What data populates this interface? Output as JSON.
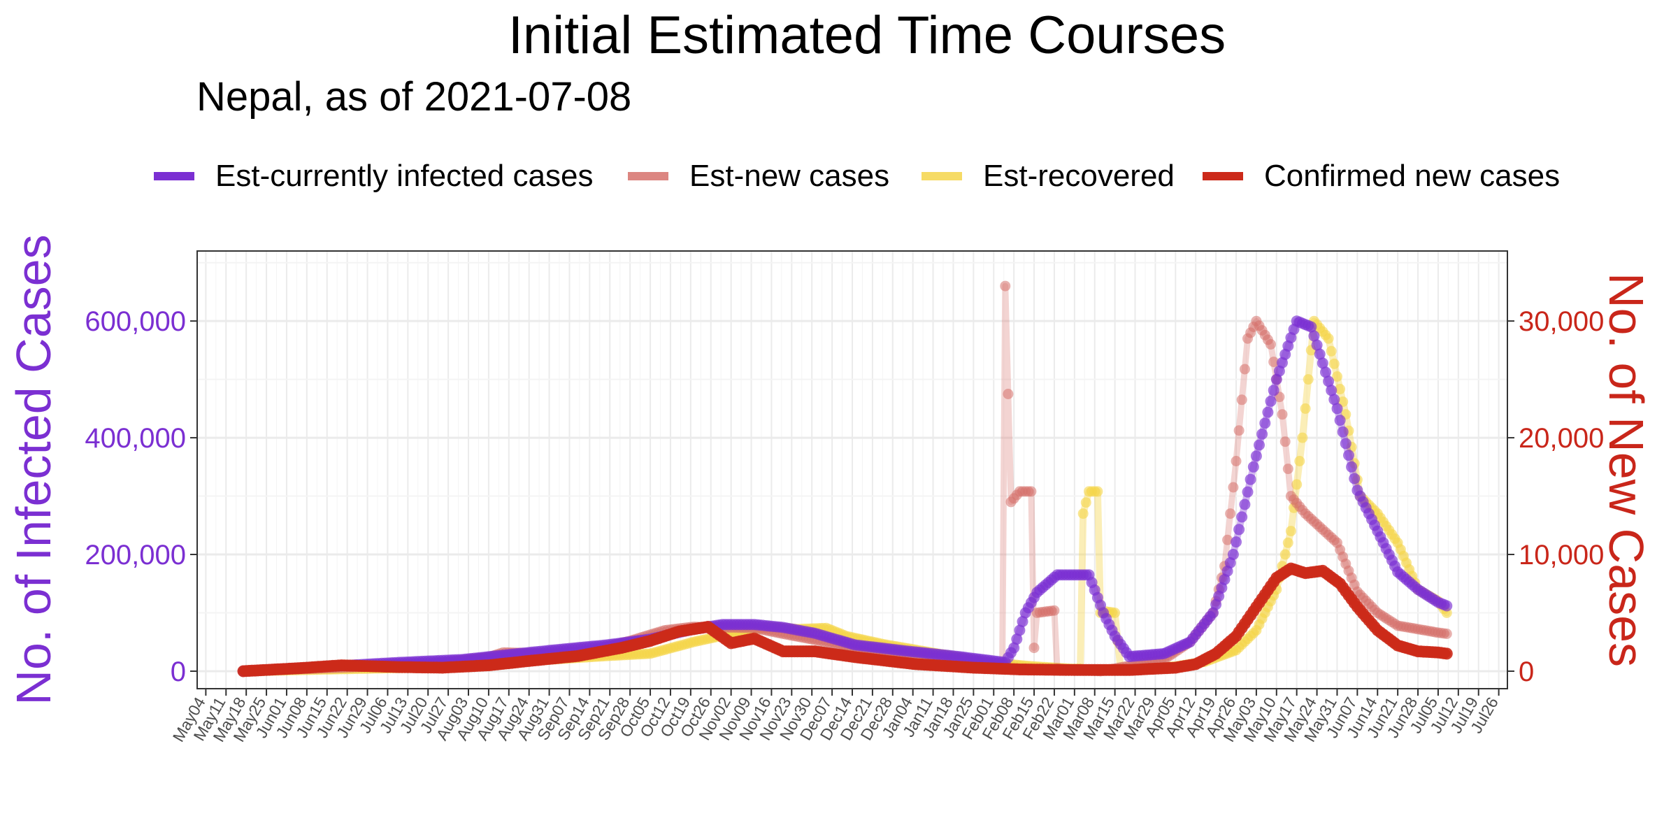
{
  "colors": {
    "infected": "#7b2fd2",
    "new_est": "#d6716b",
    "recovered": "#f5d54a",
    "confirmed": "#cc2a1a",
    "left_axis": "#7b2fd2",
    "right_axis": "#c9261a",
    "grid": "#ebebeb"
  },
  "chart_data": {
    "type": "line",
    "title": "Initial Estimated Time Courses",
    "subtitle": "Nepal, as of 2021-07-08",
    "legend_position": "top",
    "grid": true,
    "y_left": {
      "label": "No. of Infected Cases",
      "range": [
        -30000,
        720000
      ],
      "ticks": [
        0,
        200000,
        400000,
        600000
      ],
      "tick_labels": [
        "0",
        "200,000",
        "400,000",
        "600,000"
      ]
    },
    "y_right": {
      "label": "No. of New Cases",
      "range": [
        -1500,
        36000
      ],
      "ticks": [
        0,
        10000,
        20000,
        30000
      ],
      "tick_labels": [
        "0",
        "10,000",
        "20,000",
        "30,000"
      ]
    },
    "x_axis": {
      "range": [
        "2020-05-01",
        "2021-07-29"
      ],
      "tick_labels": [
        "May04",
        "May11",
        "May18",
        "May25",
        "Jun01",
        "Jun08",
        "Jun15",
        "Jun22",
        "Jun29",
        "Jul06",
        "Jul13",
        "Jul20",
        "Jul27",
        "Aug03",
        "Aug10",
        "Aug17",
        "Aug24",
        "Aug31",
        "Sep07",
        "Sep14",
        "Sep21",
        "Sep28",
        "Oct05",
        "Oct12",
        "Oct19",
        "Oct26",
        "Nov02",
        "Nov09",
        "Nov16",
        "Nov23",
        "Nov30",
        "Dec07",
        "Dec14",
        "Dec21",
        "Dec28",
        "Jan04",
        "Jan11",
        "Jan18",
        "Jan25",
        "Feb01",
        "Feb08",
        "Feb15",
        "Feb22",
        "Mar01",
        "Mar08",
        "Mar15",
        "Mar22",
        "Mar29",
        "Apr05",
        "Apr12",
        "Apr19",
        "Apr26",
        "May03",
        "May10",
        "May17",
        "May24",
        "May31",
        "Jun07",
        "Jun14",
        "Jun21",
        "Jun28",
        "Jul05",
        "Jul12",
        "Jul19",
        "Jul26"
      ],
      "tick_dates": [
        "2020-05-04",
        "2020-05-11",
        "2020-05-18",
        "2020-05-25",
        "2020-06-01",
        "2020-06-08",
        "2020-06-15",
        "2020-06-22",
        "2020-06-29",
        "2020-07-06",
        "2020-07-13",
        "2020-07-20",
        "2020-07-27",
        "2020-08-03",
        "2020-08-10",
        "2020-08-17",
        "2020-08-24",
        "2020-08-31",
        "2020-09-07",
        "2020-09-14",
        "2020-09-21",
        "2020-09-28",
        "2020-10-05",
        "2020-10-12",
        "2020-10-19",
        "2020-10-26",
        "2020-11-02",
        "2020-11-09",
        "2020-11-16",
        "2020-11-23",
        "2020-11-30",
        "2020-12-07",
        "2020-12-14",
        "2020-12-21",
        "2020-12-28",
        "2021-01-04",
        "2021-01-11",
        "2021-01-18",
        "2021-01-25",
        "2021-02-01",
        "2021-02-08",
        "2021-02-15",
        "2021-02-22",
        "2021-03-01",
        "2021-03-08",
        "2021-03-15",
        "2021-03-22",
        "2021-03-29",
        "2021-04-05",
        "2021-04-12",
        "2021-04-19",
        "2021-04-26",
        "2021-05-03",
        "2021-05-10",
        "2021-05-17",
        "2021-05-24",
        "2021-05-31",
        "2021-06-07",
        "2021-06-14",
        "2021-06-21",
        "2021-06-28",
        "2021-07-05",
        "2021-07-12",
        "2021-07-19",
        "2021-07-26"
      ]
    },
    "series": [
      {
        "name": "Est-currently infected cases",
        "axis": "left",
        "points": [
          [
            "2020-05-17",
            0
          ],
          [
            "2020-06-15",
            8000
          ],
          [
            "2020-07-10",
            15000
          ],
          [
            "2020-08-01",
            20000
          ],
          [
            "2020-08-20",
            30000
          ],
          [
            "2020-09-05",
            38000
          ],
          [
            "2020-09-20",
            45000
          ],
          [
            "2020-10-05",
            55000
          ],
          [
            "2020-10-20",
            72000
          ],
          [
            "2020-10-30",
            80000
          ],
          [
            "2020-11-10",
            80000
          ],
          [
            "2020-11-20",
            75000
          ],
          [
            "2020-12-01",
            65000
          ],
          [
            "2020-12-15",
            45000
          ],
          [
            "2021-01-01",
            35000
          ],
          [
            "2021-01-20",
            25000
          ],
          [
            "2021-02-05",
            15000
          ],
          [
            "2021-02-08",
            40000
          ],
          [
            "2021-02-12",
            100000
          ],
          [
            "2021-02-16",
            135000
          ],
          [
            "2021-02-23",
            165000
          ],
          [
            "2021-03-06",
            165000
          ],
          [
            "2021-03-11",
            100000
          ],
          [
            "2021-03-15",
            60000
          ],
          [
            "2021-03-20",
            25000
          ],
          [
            "2021-04-01",
            30000
          ],
          [
            "2021-04-10",
            50000
          ],
          [
            "2021-04-18",
            100000
          ],
          [
            "2021-04-25",
            200000
          ],
          [
            "2021-05-02",
            350000
          ],
          [
            "2021-05-10",
            500000
          ],
          [
            "2021-05-17",
            600000
          ],
          [
            "2021-05-22",
            590000
          ],
          [
            "2021-05-31",
            450000
          ],
          [
            "2021-06-07",
            310000
          ],
          [
            "2021-06-14",
            240000
          ],
          [
            "2021-06-21",
            170000
          ],
          [
            "2021-06-28",
            140000
          ],
          [
            "2021-07-05",
            118000
          ],
          [
            "2021-07-08",
            112000
          ]
        ]
      },
      {
        "name": "Est-new cases",
        "axis": "right",
        "points": [
          [
            "2020-05-17",
            0
          ],
          [
            "2020-06-20",
            300
          ],
          [
            "2020-07-20",
            600
          ],
          [
            "2020-08-10",
            1200
          ],
          [
            "2020-08-15",
            1600
          ],
          [
            "2020-09-01",
            1500
          ],
          [
            "2020-09-15",
            1800
          ],
          [
            "2020-09-28",
            2600
          ],
          [
            "2020-10-10",
            3500
          ],
          [
            "2020-10-20",
            3800
          ],
          [
            "2020-11-10",
            3700
          ],
          [
            "2020-11-20",
            3200
          ],
          [
            "2020-12-05",
            2500
          ],
          [
            "2020-12-20",
            1600
          ],
          [
            "2021-01-10",
            1200
          ],
          [
            "2021-01-30",
            700
          ],
          [
            "2021-02-04",
            600
          ],
          [
            "2021-02-05",
            33000
          ],
          [
            "2021-02-07",
            14500
          ],
          [
            "2021-02-10",
            15400
          ],
          [
            "2021-02-14",
            15400
          ],
          [
            "2021-02-15",
            2000
          ],
          [
            "2021-02-16",
            5000
          ],
          [
            "2021-02-22",
            5200
          ],
          [
            "2021-02-23",
            200
          ],
          [
            "2021-03-10",
            0
          ],
          [
            "2021-04-01",
            1000
          ],
          [
            "2021-04-10",
            2500
          ],
          [
            "2021-04-18",
            5000
          ],
          [
            "2021-04-22",
            9000
          ],
          [
            "2021-04-26",
            18000
          ],
          [
            "2021-04-30",
            28500
          ],
          [
            "2021-05-03",
            30000
          ],
          [
            "2021-05-08",
            28000
          ],
          [
            "2021-05-12",
            22000
          ],
          [
            "2021-05-15",
            15000
          ],
          [
            "2021-05-20",
            13500
          ],
          [
            "2021-05-31",
            11000
          ],
          [
            "2021-06-07",
            6800
          ],
          [
            "2021-06-14",
            5000
          ],
          [
            "2021-06-21",
            3900
          ],
          [
            "2021-06-28",
            3600
          ],
          [
            "2021-07-05",
            3300
          ],
          [
            "2021-07-08",
            3200
          ]
        ]
      },
      {
        "name": "Est-recovered",
        "axis": "right",
        "points": [
          [
            "2020-05-17",
            0
          ],
          [
            "2020-06-15",
            150
          ],
          [
            "2020-07-15",
            300
          ],
          [
            "2020-08-10",
            600
          ],
          [
            "2020-08-25",
            900
          ],
          [
            "2020-09-20",
            1300
          ],
          [
            "2020-10-05",
            1500
          ],
          [
            "2020-10-20",
            2500
          ],
          [
            "2020-11-02",
            3200
          ],
          [
            "2020-11-15",
            3800
          ],
          [
            "2020-11-25",
            3600
          ],
          [
            "2020-12-05",
            3700
          ],
          [
            "2020-12-12",
            3000
          ],
          [
            "2020-12-25",
            2300
          ],
          [
            "2021-01-15",
            1400
          ],
          [
            "2021-02-01",
            700
          ],
          [
            "2021-02-15",
            400
          ],
          [
            "2021-02-28",
            200
          ],
          [
            "2021-03-03",
            200
          ],
          [
            "2021-03-04",
            13500
          ],
          [
            "2021-03-06",
            15400
          ],
          [
            "2021-03-09",
            15400
          ],
          [
            "2021-03-10",
            5000
          ],
          [
            "2021-03-12",
            5100
          ],
          [
            "2021-03-15",
            5000
          ],
          [
            "2021-03-17",
            100
          ],
          [
            "2021-04-05",
            400
          ],
          [
            "2021-04-15",
            800
          ],
          [
            "2021-04-26",
            1800
          ],
          [
            "2021-05-03",
            3500
          ],
          [
            "2021-05-10",
            7000
          ],
          [
            "2021-05-15",
            12000
          ],
          [
            "2021-05-19",
            20000
          ],
          [
            "2021-05-23",
            30000
          ],
          [
            "2021-05-28",
            28500
          ],
          [
            "2021-06-03",
            22000
          ],
          [
            "2021-06-08",
            15000
          ],
          [
            "2021-06-14",
            13500
          ],
          [
            "2021-06-21",
            11000
          ],
          [
            "2021-06-28",
            7000
          ],
          [
            "2021-07-05",
            6000
          ],
          [
            "2021-07-08",
            5000
          ]
        ]
      },
      {
        "name": "Confirmed new cases",
        "axis": "right",
        "points": [
          [
            "2020-05-17",
            0
          ],
          [
            "2020-06-05",
            250
          ],
          [
            "2020-06-20",
            500
          ],
          [
            "2020-07-10",
            350
          ],
          [
            "2020-07-25",
            300
          ],
          [
            "2020-08-10",
            500
          ],
          [
            "2020-08-25",
            900
          ],
          [
            "2020-09-10",
            1300
          ],
          [
            "2020-09-25",
            2000
          ],
          [
            "2020-10-05",
            2600
          ],
          [
            "2020-10-15",
            3400
          ],
          [
            "2020-10-25",
            3800
          ],
          [
            "2020-11-02",
            2400
          ],
          [
            "2020-11-10",
            2800
          ],
          [
            "2020-11-20",
            1700
          ],
          [
            "2020-12-01",
            1700
          ],
          [
            "2020-12-15",
            1200
          ],
          [
            "2021-01-05",
            600
          ],
          [
            "2021-01-25",
            300
          ],
          [
            "2021-02-10",
            150
          ],
          [
            "2021-03-01",
            100
          ],
          [
            "2021-03-20",
            100
          ],
          [
            "2021-04-05",
            300
          ],
          [
            "2021-04-12",
            600
          ],
          [
            "2021-04-19",
            1500
          ],
          [
            "2021-04-26",
            3000
          ],
          [
            "2021-05-03",
            5500
          ],
          [
            "2021-05-10",
            8000
          ],
          [
            "2021-05-15",
            8800
          ],
          [
            "2021-05-20",
            8400
          ],
          [
            "2021-05-26",
            8600
          ],
          [
            "2021-06-01",
            7500
          ],
          [
            "2021-06-07",
            5500
          ],
          [
            "2021-06-14",
            3500
          ],
          [
            "2021-06-21",
            2200
          ],
          [
            "2021-06-28",
            1700
          ],
          [
            "2021-07-05",
            1600
          ],
          [
            "2021-07-08",
            1500
          ]
        ]
      }
    ]
  }
}
